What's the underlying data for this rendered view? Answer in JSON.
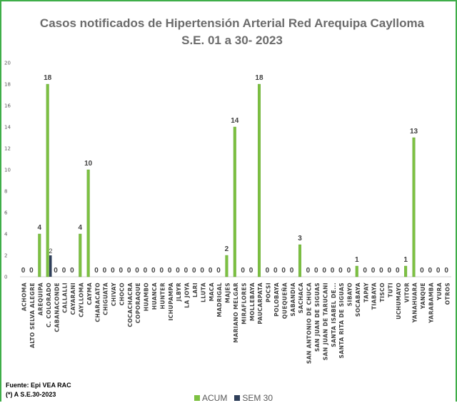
{
  "chart_data": {
    "type": "bar",
    "title": "Casos notificados de Hipertensión Arterial Red Arequipa  Caylloma",
    "subtitle": "S.E. 01 a 30- 2023",
    "ylim": [
      0,
      20
    ],
    "yticks": [
      0,
      2,
      4,
      6,
      8,
      10,
      12,
      14,
      16,
      18,
      20
    ],
    "grid": false,
    "legend_position": "bottom",
    "categories": [
      "ACHOMA",
      "ALTO SELVA ALEGRE",
      "AREQUIPA",
      "C. COLORADO",
      "CABANACONDE",
      "CALLALLI",
      "CAYARANI",
      "CAYLLOMA",
      "CAYMA",
      "CHARACATO",
      "CHIGUATA",
      "CHIVAY",
      "CHOCO",
      "COCACHACRA",
      "COPORAQUE",
      "HUAMBO",
      "HUANCA",
      "HUNTER",
      "ICHUPAMPA",
      "JLBYR",
      "LA JOYA",
      "LARI",
      "LLUTA",
      "MACA",
      "MADRIGAL",
      "MAJES",
      "MARIANO MELGAR",
      "MIRAFLORES",
      "MOLLEBAYA",
      "PAUCARPATA",
      "POCSI",
      "POLOBAYA",
      "QUEQUEÑA",
      "SABANDIA",
      "SACHACA",
      "SAN ANTONIO DE CHUCA",
      "SAN JUAN DE SIGUAS",
      "SAN JUAN DE TARUCANI",
      "SANTA ISABEL DE...",
      "SANTA RITA DE SIGUAS",
      "SIBAYO",
      "SOCABAYA",
      "TAPAY",
      "TIABAYA",
      "TISCO",
      "TUTI",
      "UCHUMAYO",
      "VITOR",
      "YANAHUARA",
      "YANQUE",
      "YARABAMBA",
      "YURA",
      "OTROS"
    ],
    "series": [
      {
        "name": "ACUM",
        "color": "#7dc142",
        "values": [
          0,
          0,
          4,
          18,
          0,
          0,
          0,
          4,
          10,
          0,
          0,
          0,
          0,
          0,
          0,
          0,
          0,
          0,
          0,
          0,
          0,
          0,
          0,
          0,
          0,
          2,
          14,
          0,
          0,
          18,
          0,
          0,
          0,
          0,
          3,
          0,
          0,
          0,
          0,
          0,
          0,
          1,
          0,
          0,
          0,
          0,
          0,
          1,
          13,
          0,
          0,
          0,
          0
        ]
      },
      {
        "name": "SEM 30",
        "color": "#2f3f5a",
        "values": [
          null,
          null,
          null,
          2,
          null,
          null,
          null,
          null,
          null,
          null,
          null,
          null,
          null,
          null,
          null,
          null,
          null,
          null,
          null,
          null,
          null,
          null,
          null,
          null,
          null,
          null,
          null,
          null,
          null,
          null,
          null,
          null,
          null,
          null,
          null,
          null,
          null,
          null,
          null,
          null,
          null,
          null,
          null,
          null,
          null,
          null,
          null,
          null,
          null,
          null,
          null,
          null,
          null
        ]
      }
    ]
  },
  "footnotes": {
    "source": "Fuente: Epi VEA RAC",
    "note": "(*) A S.E.30-2023"
  }
}
